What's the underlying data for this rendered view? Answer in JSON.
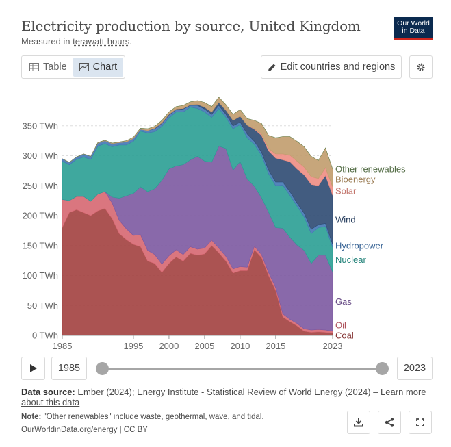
{
  "header": {
    "title": "Electricity production by source, United Kingdom",
    "subtitle_prefix": "Measured in ",
    "subtitle_link": "terawatt-hours",
    "subtitle_suffix": "."
  },
  "logo": {
    "line1": "Our World",
    "line2": "in Data"
  },
  "tabs": [
    {
      "label": "Table"
    },
    {
      "label": "Chart"
    }
  ],
  "toolbar": {
    "edit_label": "Edit countries and regions"
  },
  "controls": {
    "start_year": "1985",
    "end_year": "2023"
  },
  "footer": {
    "source_label": "Data source:",
    "source_text": " Ember (2024); Energy Institute - Statistical Review of World Energy (2024) – ",
    "learn_more": "Learn more about this data",
    "note_label": "Note:",
    "note_text": " \"Other renewables\" include waste, geothermal, wave, and tidal.",
    "credit": "OurWorldinData.org/energy | CC BY"
  },
  "chart_data": {
    "type": "area",
    "stacked": true,
    "unit": "TWh",
    "x": [
      1985,
      1986,
      1987,
      1988,
      1989,
      1990,
      1991,
      1992,
      1993,
      1994,
      1995,
      1996,
      1997,
      1998,
      1999,
      2000,
      2001,
      2002,
      2003,
      2004,
      2005,
      2006,
      2007,
      2008,
      2009,
      2010,
      2011,
      2012,
      2013,
      2014,
      2015,
      2016,
      2017,
      2018,
      2019,
      2020,
      2021,
      2022,
      2023
    ],
    "x_ticks": [
      "1985",
      "1995",
      "2000",
      "2005",
      "2010",
      "2015",
      "2023"
    ],
    "y_ticks": [
      "0 TWh",
      "50 TWh",
      "100 TWh",
      "150 TWh",
      "200 TWh",
      "250 TWh",
      "300 TWh",
      "350 TWh"
    ],
    "ylim": [
      0,
      400
    ],
    "series": [
      {
        "name": "Coal",
        "color": "#a2403f",
        "values": [
          180,
          205,
          210,
          205,
          200,
          208,
          212,
          195,
          170,
          160,
          152,
          148,
          124,
          120,
          105,
          120,
          131,
          124,
          137,
          134,
          136,
          150,
          138,
          124,
          104,
          108,
          108,
          143,
          130,
          100,
          75,
          31,
          23,
          16,
          7,
          5,
          6,
          5,
          4
        ]
      },
      {
        "name": "Oil",
        "color": "#d66771",
        "values": [
          47,
          20,
          22,
          27,
          24,
          28,
          28,
          26,
          22,
          18,
          15,
          20,
          18,
          15,
          14,
          13,
          12,
          11,
          11,
          10,
          10,
          9,
          8,
          8,
          7,
          7,
          6,
          6,
          5,
          5,
          5,
          5,
          4,
          4,
          4,
          4,
          4,
          4,
          3
        ]
      },
      {
        "name": "Gas",
        "color": "#7c59a1",
        "values": [
          0,
          0,
          0,
          0,
          0,
          0,
          0,
          10,
          37,
          55,
          70,
          80,
          98,
          110,
          140,
          145,
          140,
          150,
          145,
          155,
          145,
          130,
          170,
          180,
          165,
          175,
          147,
          100,
          95,
          101,
          100,
          143,
          137,
          131,
          131,
          111,
          124,
          125,
          99
        ]
      },
      {
        "name": "Nuclear",
        "color": "#2a9f94",
        "values": [
          64,
          60,
          62,
          66,
          70,
          80,
          80,
          84,
          89,
          85,
          87,
          93,
          98,
          95,
          90,
          85,
          90,
          88,
          88,
          80,
          82,
          75,
          63,
          52,
          69,
          62,
          69,
          70,
          71,
          64,
          70,
          72,
          70,
          65,
          56,
          50,
          46,
          48,
          41
        ]
      },
      {
        "name": "Hydropower",
        "color": "#4277b4",
        "values": [
          4,
          4,
          4,
          5,
          5,
          5,
          5,
          5,
          4,
          5,
          5,
          3,
          4,
          5,
          5,
          5,
          4,
          5,
          3,
          5,
          5,
          5,
          5,
          5,
          5,
          4,
          6,
          5,
          5,
          6,
          6,
          5,
          6,
          5,
          6,
          7,
          5,
          5,
          5
        ]
      },
      {
        "name": "Wind",
        "color": "#2e4a72",
        "values": [
          0,
          0,
          0,
          0,
          0,
          0,
          0,
          0,
          0,
          0,
          0,
          0,
          0,
          1,
          1,
          1,
          1,
          1,
          1,
          2,
          3,
          4,
          5,
          7,
          9,
          10,
          15,
          20,
          28,
          32,
          40,
          37,
          50,
          57,
          64,
          75,
          65,
          80,
          82
        ]
      },
      {
        "name": "Solar",
        "color": "#ed8d83",
        "values": [
          0,
          0,
          0,
          0,
          0,
          0,
          0,
          0,
          0,
          0,
          0,
          0,
          0,
          0,
          0,
          0,
          0,
          0,
          0,
          0,
          0,
          0,
          0,
          0,
          0,
          0,
          0,
          1,
          2,
          4,
          7,
          10,
          11,
          13,
          13,
          13,
          12,
          13,
          14
        ]
      },
      {
        "name": "Bioenergy",
        "color": "#c19c6d",
        "values": [
          0,
          0,
          0,
          0,
          0,
          1,
          1,
          1,
          1,
          2,
          2,
          2,
          3,
          3,
          4,
          4,
          4,
          5,
          5,
          6,
          8,
          9,
          9,
          9,
          10,
          11,
          11,
          14,
          18,
          22,
          27,
          29,
          31,
          33,
          34,
          34,
          30,
          33,
          30
        ]
      },
      {
        "name": "Other renewables",
        "color": "#668555",
        "values": [
          0,
          0,
          0,
          0,
          0,
          0,
          0,
          0,
          0,
          0,
          0,
          0,
          0,
          0,
          0,
          0,
          0,
          0,
          0,
          0,
          0,
          0,
          0,
          0,
          0,
          0,
          0,
          0,
          0,
          0,
          0,
          0,
          0,
          0,
          0,
          0,
          0,
          0,
          0
        ]
      }
    ]
  }
}
